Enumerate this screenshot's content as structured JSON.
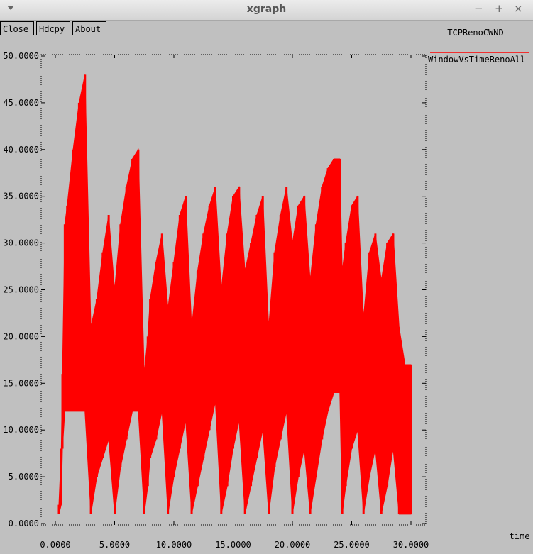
{
  "window": {
    "title": "xgraph",
    "controls": {
      "minimize": "−",
      "maximize": "+",
      "close": "×"
    }
  },
  "toolbar": {
    "close_label": "Close",
    "hdcpy_label": "Hdcpy",
    "about_label": "About"
  },
  "chart_data": {
    "type": "line",
    "title": "TCPRenoCWND",
    "xlabel": "time",
    "ylabel": "",
    "xlim": [
      0,
      30
    ],
    "ylim": [
      0,
      50
    ],
    "xticks": [
      "0.0000",
      "5.0000",
      "10.0000",
      "15.0000",
      "20.0000",
      "25.0000",
      "30.0000"
    ],
    "yticks": [
      "0.0000",
      "5.0000",
      "10.0000",
      "15.0000",
      "20.0000",
      "25.0000",
      "30.0000",
      "35.0000",
      "40.0000",
      "45.0000",
      "50.0000"
    ],
    "grid": false,
    "legend_position": "top-right",
    "series": [
      {
        "name": "WindowVsTimeRenoAll",
        "color": "#ff0000",
        "style": "dense-sawtooth",
        "x": [
          0.3,
          0.5,
          0.6,
          0.8,
          1.0,
          1.5,
          2.0,
          2.5,
          3.0,
          3.5,
          4.0,
          4.5,
          5.0,
          5.5,
          6.0,
          6.5,
          7.0,
          7.5,
          7.8,
          8.0,
          8.5,
          9.0,
          9.5,
          10.0,
          10.5,
          11.0,
          11.5,
          12.0,
          12.5,
          13.0,
          13.5,
          14.0,
          14.5,
          15.0,
          15.5,
          16.0,
          16.5,
          17.0,
          17.5,
          18.0,
          18.5,
          19.0,
          19.5,
          20.0,
          20.5,
          21.0,
          21.5,
          22.0,
          22.5,
          23.0,
          23.5,
          24.0,
          24.2,
          24.5,
          25.0,
          25.5,
          26.0,
          26.5,
          27.0,
          27.5,
          28.0,
          28.5,
          29.0,
          29.5,
          30.0
        ],
        "y_max": [
          2,
          8,
          16,
          32,
          34,
          40,
          45,
          48,
          21,
          24,
          29,
          33,
          25,
          32,
          36,
          39,
          40,
          16,
          20,
          24,
          28,
          31,
          23,
          28,
          33,
          35,
          21,
          27,
          31,
          34,
          36,
          25,
          31,
          35,
          36,
          27,
          30,
          33,
          35,
          21,
          29,
          33,
          36,
          30,
          34,
          35,
          26,
          32,
          36,
          38,
          39,
          39,
          27,
          30,
          34,
          35,
          22,
          29,
          31,
          26,
          30,
          31,
          21,
          17,
          17
        ],
        "y_min": [
          1,
          2,
          8,
          12,
          12,
          12,
          12,
          12,
          1,
          5,
          7,
          9,
          1,
          6,
          9,
          12,
          12,
          1,
          4,
          7,
          9,
          12,
          1,
          5,
          8,
          11,
          1,
          4,
          7,
          10,
          13,
          1,
          4,
          8,
          11,
          1,
          4,
          7,
          10,
          1,
          6,
          9,
          12,
          1,
          5,
          8,
          1,
          5,
          9,
          12,
          14,
          14,
          1,
          4,
          8,
          10,
          1,
          5,
          8,
          1,
          4,
          8,
          1,
          1,
          1
        ]
      }
    ]
  }
}
